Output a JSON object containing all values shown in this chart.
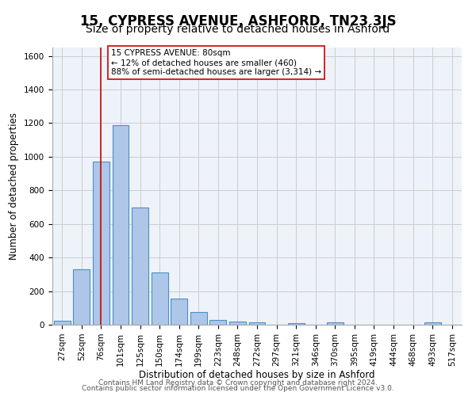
{
  "title1": "15, CYPRESS AVENUE, ASHFORD, TN23 3JS",
  "title2": "Size of property relative to detached houses in Ashford",
  "xlabel": "Distribution of detached houses by size in Ashford",
  "ylabel": "Number of detached properties",
  "footnote1": "Contains HM Land Registry data © Crown copyright and database right 2024.",
  "footnote2": "Contains public sector information licensed under the Open Government Licence v3.0.",
  "bar_labels": [
    "27sqm",
    "52sqm",
    "76sqm",
    "101sqm",
    "125sqm",
    "150sqm",
    "174sqm",
    "199sqm",
    "223sqm",
    "248sqm",
    "272sqm",
    "297sqm",
    "321sqm",
    "346sqm",
    "370sqm",
    "395sqm",
    "419sqm",
    "444sqm",
    "468sqm",
    "493sqm",
    "517sqm"
  ],
  "bar_values": [
    25,
    330,
    970,
    1190,
    700,
    310,
    155,
    75,
    30,
    20,
    13,
    0,
    10,
    0,
    13,
    0,
    0,
    0,
    0,
    13,
    0
  ],
  "bar_color": "#aec6e8",
  "bar_edge_color": "#4a90c4",
  "vline_x": 2.0,
  "vline_color": "#cc0000",
  "annotation_text": "15 CYPRESS AVENUE: 80sqm\n← 12% of detached houses are smaller (460)\n88% of semi-detached houses are larger (3,314) →",
  "annotation_box_color": "#ffffff",
  "annotation_box_edge_color": "#cc0000",
  "ylim": [
    0,
    1650
  ],
  "yticks": [
    0,
    200,
    400,
    600,
    800,
    1000,
    1200,
    1400,
    1600
  ],
  "grid_color": "#cccccc",
  "bg_color": "#eef3fa",
  "plot_bg_color": "#eef3fa",
  "title1_fontsize": 12,
  "title2_fontsize": 10,
  "annotation_fontsize": 7.5,
  "axis_label_fontsize": 8.5,
  "tick_fontsize": 7.5,
  "footnote_fontsize": 6.5
}
